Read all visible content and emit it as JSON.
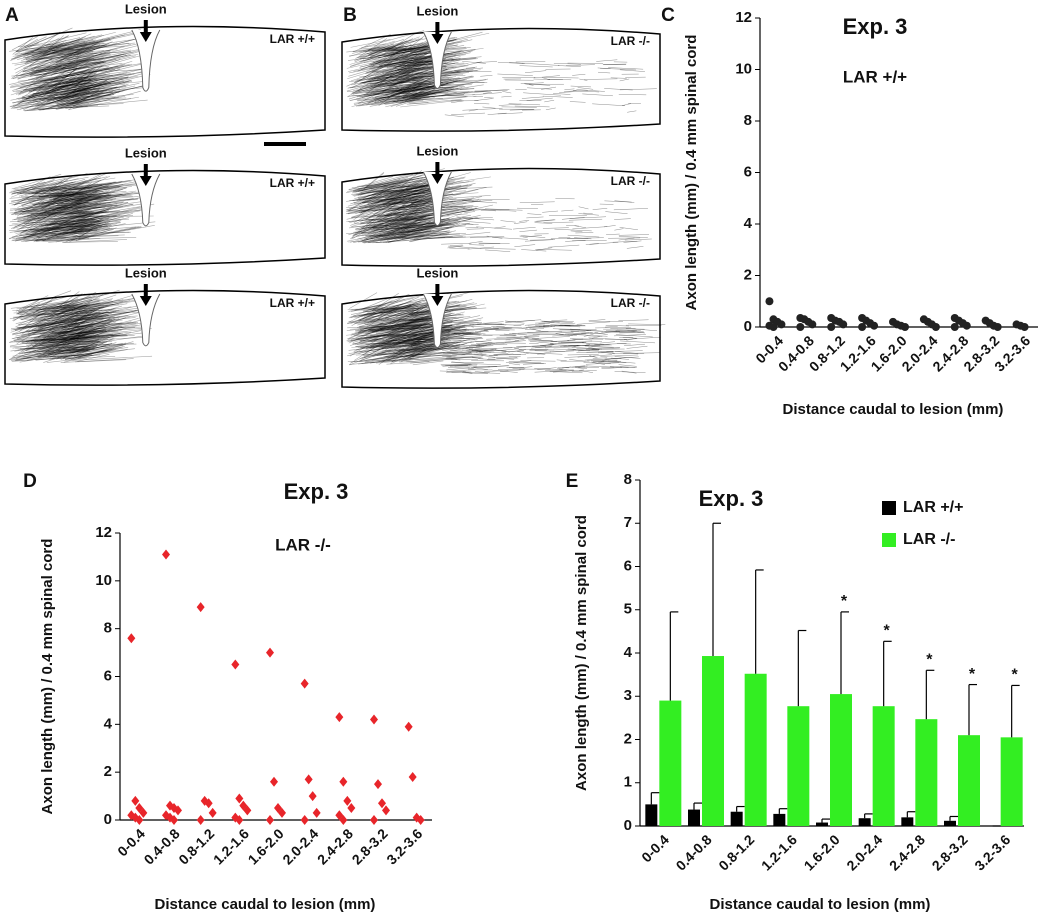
{
  "panels": [
    {
      "label": "A",
      "sections": [
        {
          "marker": "Lesion",
          "genotype": "LAR +/+"
        },
        {
          "marker": "Lesion",
          "genotype": "LAR +/+"
        },
        {
          "marker": "Lesion",
          "genotype": "LAR +/+"
        }
      ]
    },
    {
      "label": "B",
      "sections": [
        {
          "marker": "Lesion",
          "genotype": "LAR -/-"
        },
        {
          "marker": "Lesion",
          "genotype": "LAR -/-"
        },
        {
          "marker": "Lesion",
          "genotype": "LAR -/-"
        }
      ]
    }
  ],
  "chart_data": [
    {
      "type": "scatter",
      "panel_label": "C",
      "title": "Exp. 3",
      "subtitle": "LAR +/+",
      "ylabel": "Axon length  (mm) / 0.4 mm spinal cord",
      "xlabel": "Distance caudal to lesion (mm)",
      "categories": [
        "0-0.4",
        "0.4-0.8",
        "0.8-1.2",
        "1.2-1.6",
        "1.6-2.0",
        "2.0-2.4",
        "2.4-2.8",
        "2.8-3.2",
        "3.2-3.6"
      ],
      "marker": "circle",
      "color": "#222222",
      "values": [
        [
          1.0,
          0.3,
          0.2,
          0.1,
          0.05,
          0
        ],
        [
          0.35,
          0.3,
          0.2,
          0.1,
          0
        ],
        [
          0.35,
          0.25,
          0.2,
          0.1,
          0
        ],
        [
          0.35,
          0.25,
          0.15,
          0.05,
          0
        ],
        [
          0.2,
          0.1,
          0.05,
          0
        ],
        [
          0.3,
          0.2,
          0.1,
          0
        ],
        [
          0.35,
          0.25,
          0.15,
          0.05,
          0
        ],
        [
          0.25,
          0.15,
          0.05,
          0
        ],
        [
          0.1,
          0.05,
          0
        ]
      ],
      "ylim": [
        0,
        12
      ],
      "yticks": [
        0,
        2,
        4,
        6,
        8,
        10,
        12
      ]
    },
    {
      "type": "scatter",
      "panel_label": "D",
      "title": "Exp. 3",
      "subtitle": "LAR -/-",
      "ylabel": "Axon length  (mm) / 0.4 mm spinal cord",
      "xlabel": "Distance caudal to lesion (mm)",
      "categories": [
        "0-0.4",
        "0.4-0.8",
        "0.8-1.2",
        "1.2-1.6",
        "1.6-2.0",
        "2.0-2.4",
        "2.4-2.8",
        "2.8-3.2",
        "3.2-3.6"
      ],
      "marker": "diamond",
      "color": "#e8252a",
      "values": [
        [
          7.6,
          0.8,
          0.5,
          0.3,
          0.2,
          0.1,
          0
        ],
        [
          11.1,
          0.6,
          0.5,
          0.4,
          0.2,
          0.1,
          0
        ],
        [
          8.9,
          0.8,
          0.7,
          0.3,
          0
        ],
        [
          6.5,
          0.9,
          0.6,
          0.4,
          0.1,
          0
        ],
        [
          7.0,
          1.6,
          0.5,
          0.3,
          0
        ],
        [
          5.7,
          1.7,
          1.0,
          0.3,
          0
        ],
        [
          4.3,
          1.6,
          0.8,
          0.5,
          0.2,
          0
        ],
        [
          4.2,
          1.5,
          0.7,
          0.4,
          0
        ],
        [
          3.9,
          1.8,
          0.1,
          0
        ]
      ],
      "ylim": [
        0,
        12
      ],
      "yticks": [
        0,
        2,
        4,
        6,
        8,
        10,
        12
      ]
    },
    {
      "type": "bar",
      "panel_label": "E",
      "title": "Exp. 3",
      "ylabel": "Axon length  (mm) / 0.4 mm spinal cord",
      "xlabel": "Distance caudal to lesion (mm)",
      "categories": [
        "0-0.4",
        "0.4-0.8",
        "0.8-1.2",
        "1.2-1.6",
        "1.6-2.0",
        "2.0-2.4",
        "2.4-2.8",
        "2.8-3.2",
        "3.2-3.6"
      ],
      "series": [
        {
          "name": "LAR +/+",
          "color": "#000000",
          "values": [
            0.5,
            0.38,
            0.33,
            0.28,
            0.08,
            0.18,
            0.2,
            0.12,
            0
          ],
          "errors": [
            0.27,
            0.15,
            0.12,
            0.12,
            0.08,
            0.1,
            0.13,
            0.1,
            0
          ]
        },
        {
          "name": "LAR -/-",
          "color": "#33ee22",
          "values": [
            2.9,
            3.93,
            3.52,
            2.77,
            3.05,
            2.77,
            2.47,
            2.1,
            2.05
          ],
          "errors": [
            2.05,
            3.07,
            2.4,
            1.75,
            1.9,
            1.5,
            1.13,
            1.17,
            1.2
          ]
        }
      ],
      "significance": [
        null,
        null,
        null,
        null,
        "*",
        "*",
        "*",
        "*",
        "*"
      ],
      "ylim": [
        0,
        8
      ],
      "yticks": [
        0,
        1,
        2,
        3,
        4,
        5,
        6,
        7,
        8
      ]
    }
  ]
}
